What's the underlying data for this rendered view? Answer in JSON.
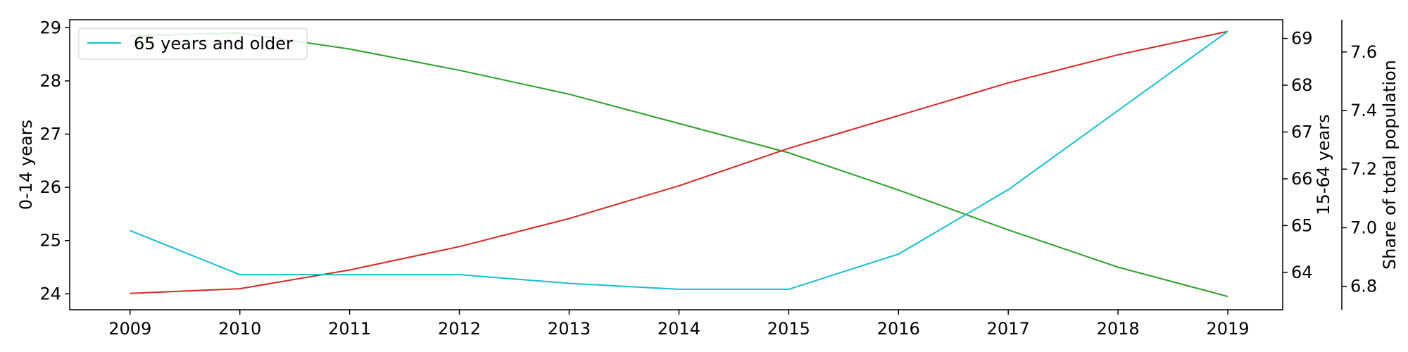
{
  "chart_data": {
    "type": "line",
    "x": [
      2009,
      2010,
      2011,
      2012,
      2013,
      2014,
      2015,
      2016,
      2017,
      2018,
      2019
    ],
    "series": [
      {
        "name": "",
        "axis": "left",
        "color": "#2ca02c",
        "values": [
          28.85,
          28.9,
          28.6,
          28.2,
          27.75,
          27.2,
          26.65,
          25.95,
          25.2,
          24.5,
          23.95
        ]
      },
      {
        "name": "",
        "axis": "right1",
        "color": "#d62728",
        "values": [
          63.55,
          63.65,
          64.05,
          64.55,
          65.15,
          65.85,
          66.65,
          67.35,
          68.05,
          68.65,
          69.15
        ]
      },
      {
        "name": "65 years and older",
        "axis": "right2",
        "color": "#17becf",
        "values": [
          6.99,
          6.84,
          6.84,
          6.84,
          6.81,
          6.79,
          6.79,
          6.91,
          7.13,
          7.4,
          7.67
        ]
      }
    ],
    "axes": {
      "left": {
        "label": "0-14 years",
        "ylim": [
          23.7,
          29.15
        ],
        "ticks": [
          24,
          25,
          26,
          27,
          28,
          29
        ]
      },
      "right1": {
        "label": "15-64 years",
        "ylim": [
          63.2,
          69.4
        ],
        "ticks": [
          64,
          65,
          66,
          67,
          68,
          69
        ]
      },
      "right2": {
        "label": "Share of total population",
        "ylim": [
          6.72,
          7.71
        ],
        "ticks": [
          6.8,
          7.0,
          7.2,
          7.4,
          7.6
        ],
        "tick_format": "1dp"
      }
    },
    "xlim": [
      2008.45,
      2019.5
    ],
    "xticks": [
      2009,
      2010,
      2011,
      2012,
      2013,
      2014,
      2015,
      2016,
      2017,
      2018,
      2019
    ],
    "legend": {
      "placement": "top-left",
      "entries": [
        "65 years and older"
      ]
    },
    "grid": false
  }
}
